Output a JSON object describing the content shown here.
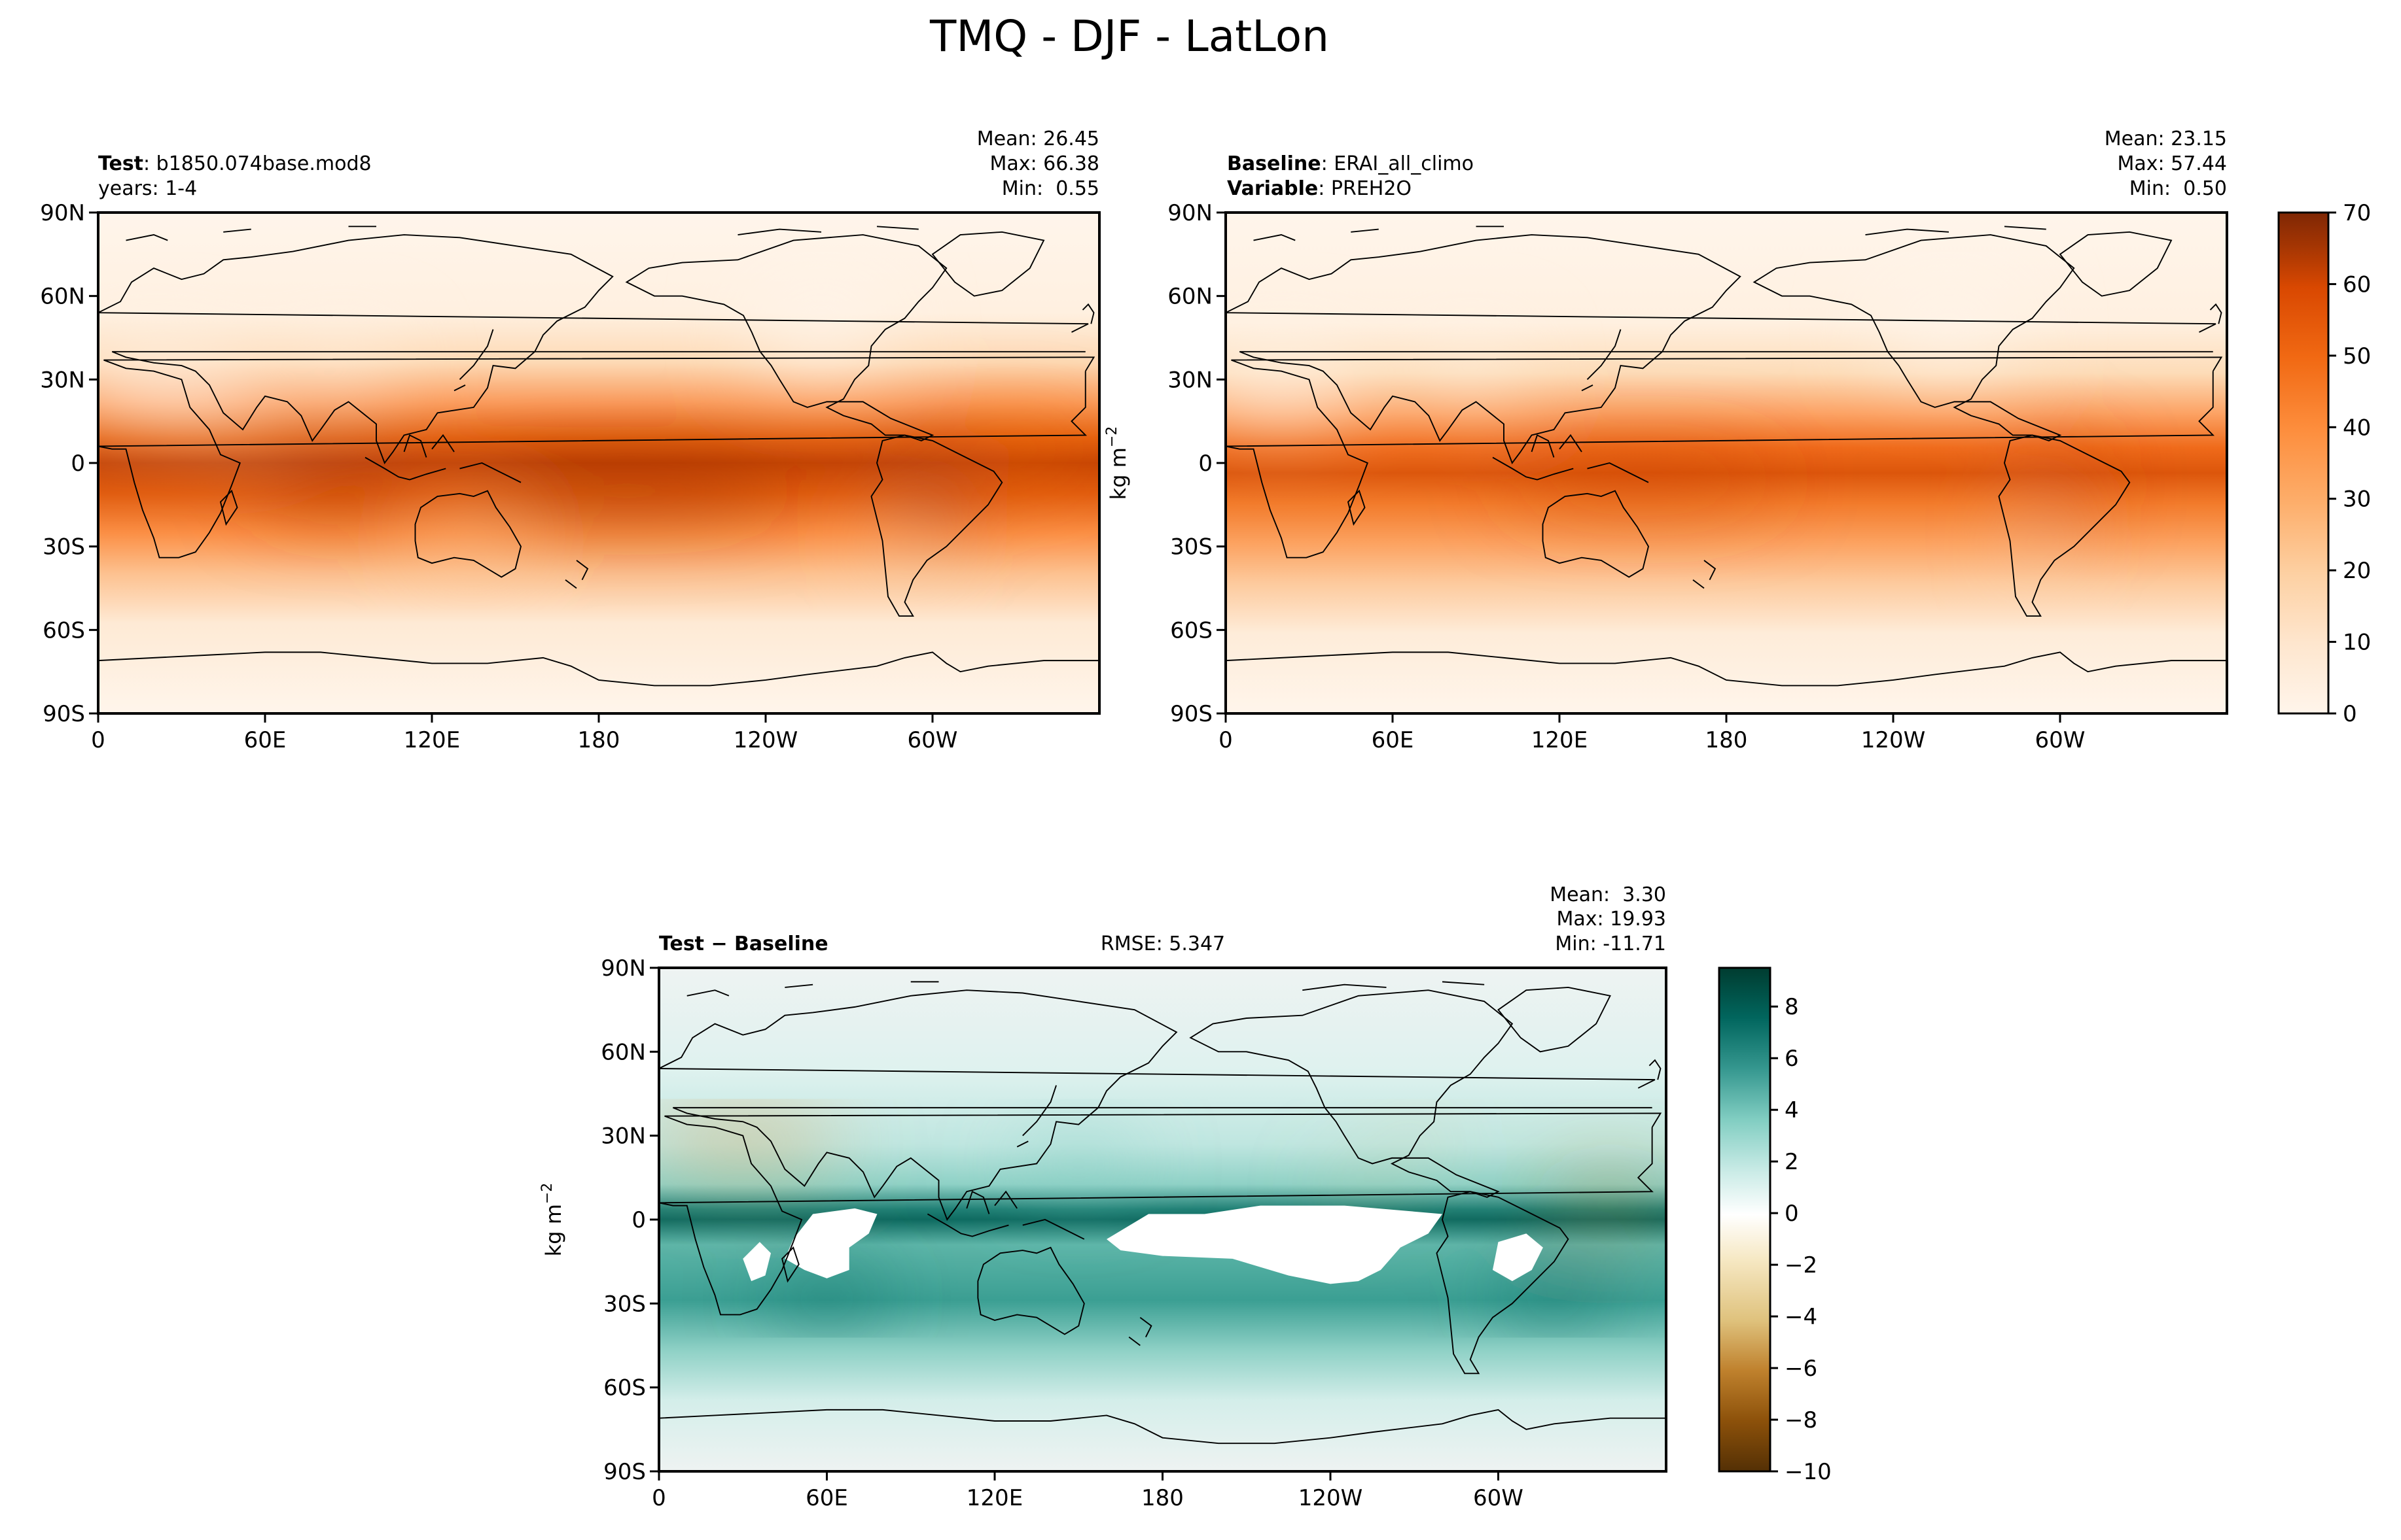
{
  "figure": {
    "title": "TMQ - DJF - LatLon"
  },
  "chart_data": [
    {
      "type": "heatmap",
      "panel": "test",
      "label_bold": "Test",
      "label_rest": ": b1850.074base.mod8",
      "label2": "years: 1-4",
      "stats": [
        "Mean: 26.45",
        "Max: 66.38",
        "Min:  0.55"
      ],
      "stats_values": {
        "mean": 26.45,
        "max": 66.38,
        "min": 0.55
      },
      "xlim": [
        0,
        360
      ],
      "ylim": [
        -90,
        90
      ],
      "x_ticks": [
        "0",
        "60E",
        "120E",
        "180",
        "120W",
        "60W"
      ],
      "y_ticks": [
        "90N",
        "60N",
        "30N",
        "0",
        "30S",
        "60S",
        "90S"
      ],
      "colormap": "Oranges",
      "zlim": [
        0,
        70
      ]
    },
    {
      "type": "heatmap",
      "panel": "baseline",
      "label_bold": "Baseline",
      "label_rest": ": ERAI_all_climo",
      "label2_bold": "Variable",
      "label2_rest": ": PREH2O",
      "stats": [
        "Mean: 23.15",
        "Max: 57.44",
        "Min:  0.50"
      ],
      "stats_values": {
        "mean": 23.15,
        "max": 57.44,
        "min": 0.5
      },
      "xlim": [
        0,
        360
      ],
      "ylim": [
        -90,
        90
      ],
      "x_ticks": [
        "0",
        "60E",
        "120E",
        "180",
        "120W",
        "60W"
      ],
      "y_ticks": [
        "90N",
        "60N",
        "30N",
        "0",
        "30S",
        "60S",
        "90S"
      ],
      "colorbar": {
        "ticks": [
          "0",
          "10",
          "20",
          "30",
          "40",
          "50",
          "60",
          "70"
        ],
        "range": [
          0,
          70
        ],
        "label": "kg m",
        "label_sup": "−2"
      }
    },
    {
      "type": "heatmap",
      "panel": "difference",
      "label_bold": "Test − Baseline",
      "rmse": "RMSE: 5.347",
      "stats": [
        "Mean:  3.30",
        "Max: 19.93",
        "Min: -11.71"
      ],
      "stats_values": {
        "mean": 3.3,
        "max": 19.93,
        "min": -11.71
      },
      "xlim": [
        0,
        360
      ],
      "ylim": [
        -90,
        90
      ],
      "x_ticks": [
        "0",
        "60E",
        "120E",
        "180",
        "120W",
        "60W"
      ],
      "y_ticks": [
        "90N",
        "60N",
        "30N",
        "0",
        "30S",
        "60S",
        "90S"
      ],
      "ylabel": "kg m",
      "ylabel_sup": "−2",
      "colormap": "BrBG",
      "colorbar": {
        "ticks": [
          "8",
          "6",
          "4",
          "2",
          "0",
          "−2",
          "−4",
          "−6",
          "−8",
          "−10"
        ],
        "range": [
          -10,
          9.5
        ]
      }
    }
  ],
  "colors": {
    "oranges": [
      "#fff5eb",
      "#fee6ce",
      "#fdd0a2",
      "#fdae6b",
      "#fd8d3c",
      "#f16913",
      "#d94801",
      "#a63603",
      "#7f2704"
    ],
    "brbg": [
      "#543005",
      "#8c510a",
      "#bf812d",
      "#dfc27d",
      "#f6e8c3",
      "#ffffff",
      "#c7eae5",
      "#80cdc1",
      "#35978f",
      "#01665e",
      "#003c30"
    ]
  }
}
